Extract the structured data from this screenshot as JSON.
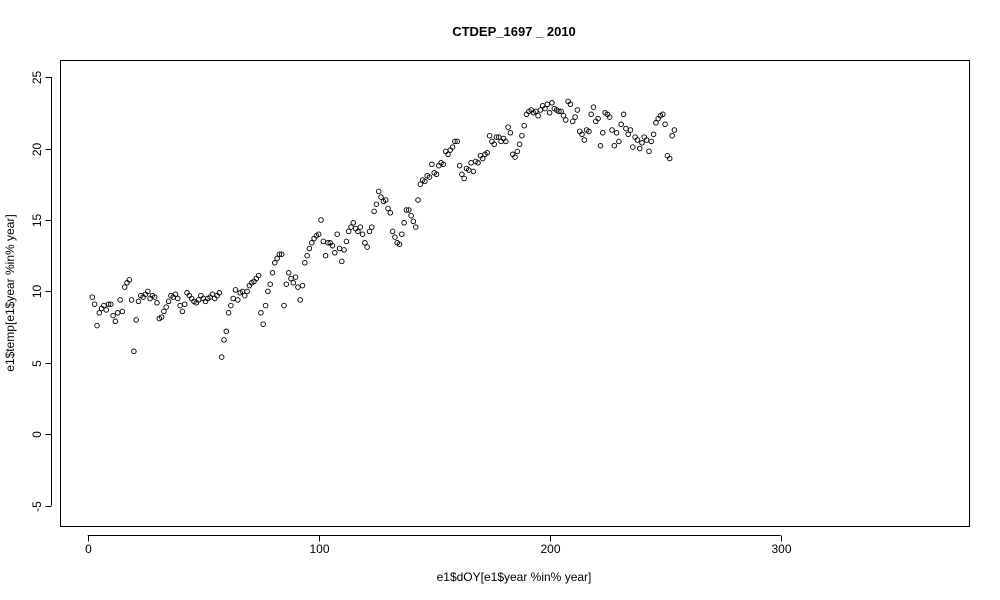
{
  "chart_data": {
    "type": "scatter",
    "title": "CTDEP_1697 _ 2010",
    "xlabel": "e1$dOY[e1$year %in% year]",
    "ylabel": "e1$temp[e1$year %in% year]",
    "xlim": [
      -12,
      382
    ],
    "ylim": [
      -6.5,
      26.2
    ],
    "x_ticks": [
      0,
      100,
      200,
      300
    ],
    "y_ticks": [
      -5,
      0,
      5,
      10,
      15,
      20,
      25
    ],
    "x_tick_labels": [
      "0",
      "100",
      "200",
      "300"
    ],
    "y_tick_labels": [
      "-5",
      "0",
      "5",
      "10",
      "15",
      "20",
      "25"
    ],
    "grid": false,
    "marker": "open-circle",
    "points": [
      [
        2,
        9.6
      ],
      [
        3,
        9.1
      ],
      [
        4,
        7.6
      ],
      [
        5,
        8.5
      ],
      [
        6,
        8.8
      ],
      [
        7,
        9.0
      ],
      [
        8,
        8.7
      ],
      [
        9,
        9.1
      ],
      [
        10,
        9.1
      ],
      [
        11,
        8.3
      ],
      [
        12,
        7.9
      ],
      [
        13,
        8.5
      ],
      [
        14,
        9.4
      ],
      [
        15,
        8.6
      ],
      [
        16,
        10.3
      ],
      [
        17,
        10.6
      ],
      [
        18,
        10.8
      ],
      [
        19,
        9.4
      ],
      [
        20,
        5.8
      ],
      [
        21,
        8.0
      ],
      [
        22,
        9.3
      ],
      [
        23,
        9.7
      ],
      [
        24,
        9.6
      ],
      [
        25,
        9.8
      ],
      [
        26,
        10.0
      ],
      [
        27,
        9.5
      ],
      [
        28,
        9.7
      ],
      [
        29,
        9.6
      ],
      [
        30,
        9.2
      ],
      [
        31,
        8.1
      ],
      [
        32,
        8.2
      ],
      [
        33,
        8.6
      ],
      [
        34,
        8.9
      ],
      [
        35,
        9.3
      ],
      [
        36,
        9.7
      ],
      [
        37,
        9.6
      ],
      [
        38,
        9.8
      ],
      [
        39,
        9.5
      ],
      [
        40,
        9.0
      ],
      [
        41,
        8.6
      ],
      [
        42,
        9.1
      ],
      [
        43,
        9.9
      ],
      [
        44,
        9.7
      ],
      [
        45,
        9.5
      ],
      [
        46,
        9.3
      ],
      [
        47,
        9.2
      ],
      [
        48,
        9.4
      ],
      [
        49,
        9.7
      ],
      [
        50,
        9.5
      ],
      [
        51,
        9.3
      ],
      [
        52,
        9.5
      ],
      [
        53,
        9.6
      ],
      [
        54,
        9.8
      ],
      [
        55,
        9.5
      ],
      [
        56,
        9.7
      ],
      [
        57,
        9.9
      ],
      [
        58,
        5.4
      ],
      [
        59,
        6.6
      ],
      [
        60,
        7.2
      ],
      [
        61,
        8.5
      ],
      [
        62,
        9.0
      ],
      [
        63,
        9.5
      ],
      [
        64,
        10.1
      ],
      [
        65,
        9.4
      ],
      [
        66,
        9.9
      ],
      [
        67,
        10.0
      ],
      [
        68,
        9.7
      ],
      [
        69,
        10.0
      ],
      [
        70,
        10.4
      ],
      [
        71,
        10.6
      ],
      [
        72,
        10.7
      ],
      [
        73,
        10.9
      ],
      [
        74,
        11.1
      ],
      [
        75,
        8.5
      ],
      [
        76,
        7.7
      ],
      [
        77,
        9.0
      ],
      [
        78,
        10.0
      ],
      [
        79,
        10.5
      ],
      [
        80,
        11.3
      ],
      [
        81,
        12.0
      ],
      [
        82,
        12.3
      ],
      [
        83,
        12.6
      ],
      [
        84,
        12.6
      ],
      [
        85,
        9.0
      ],
      [
        86,
        10.5
      ],
      [
        87,
        11.3
      ],
      [
        88,
        10.9
      ],
      [
        89,
        10.6
      ],
      [
        90,
        11.0
      ],
      [
        91,
        10.3
      ],
      [
        92,
        9.4
      ],
      [
        93,
        10.4
      ],
      [
        94,
        12.0
      ],
      [
        95,
        12.5
      ],
      [
        96,
        13.0
      ],
      [
        97,
        13.4
      ],
      [
        98,
        13.7
      ],
      [
        99,
        13.9
      ],
      [
        100,
        14.0
      ],
      [
        101,
        15.0
      ],
      [
        102,
        13.5
      ],
      [
        103,
        12.5
      ],
      [
        104,
        13.4
      ],
      [
        105,
        13.4
      ],
      [
        106,
        13.2
      ],
      [
        107,
        12.7
      ],
      [
        108,
        14.0
      ],
      [
        109,
        13.0
      ],
      [
        110,
        12.1
      ],
      [
        111,
        12.9
      ],
      [
        112,
        13.5
      ],
      [
        113,
        14.2
      ],
      [
        114,
        14.5
      ],
      [
        115,
        14.8
      ],
      [
        116,
        14.4
      ],
      [
        117,
        14.2
      ],
      [
        118,
        14.5
      ],
      [
        119,
        14.0
      ],
      [
        120,
        13.4
      ],
      [
        121,
        13.1
      ],
      [
        122,
        14.2
      ],
      [
        123,
        14.5
      ],
      [
        124,
        15.6
      ],
      [
        125,
        16.1
      ],
      [
        126,
        17.0
      ],
      [
        127,
        16.6
      ],
      [
        128,
        16.3
      ],
      [
        129,
        16.4
      ],
      [
        130,
        15.8
      ],
      [
        131,
        15.5
      ],
      [
        132,
        14.2
      ],
      [
        133,
        13.8
      ],
      [
        134,
        13.4
      ],
      [
        135,
        13.3
      ],
      [
        136,
        14.0
      ],
      [
        137,
        14.8
      ],
      [
        138,
        15.7
      ],
      [
        139,
        15.7
      ],
      [
        140,
        15.3
      ],
      [
        141,
        14.9
      ],
      [
        142,
        14.5
      ],
      [
        143,
        16.4
      ],
      [
        144,
        17.5
      ],
      [
        145,
        17.8
      ],
      [
        146,
        17.7
      ],
      [
        147,
        18.1
      ],
      [
        148,
        18.0
      ],
      [
        149,
        18.9
      ],
      [
        150,
        18.3
      ],
      [
        151,
        18.2
      ],
      [
        152,
        18.8
      ],
      [
        153,
        19.0
      ],
      [
        154,
        18.9
      ],
      [
        155,
        19.8
      ],
      [
        156,
        19.6
      ],
      [
        157,
        19.9
      ],
      [
        158,
        20.1
      ],
      [
        159,
        20.5
      ],
      [
        160,
        20.5
      ],
      [
        161,
        18.8
      ],
      [
        162,
        18.2
      ],
      [
        163,
        17.9
      ],
      [
        164,
        18.6
      ],
      [
        165,
        18.5
      ],
      [
        166,
        19.0
      ],
      [
        167,
        18.4
      ],
      [
        168,
        19.1
      ],
      [
        169,
        19.0
      ],
      [
        170,
        19.5
      ],
      [
        171,
        19.3
      ],
      [
        172,
        19.6
      ],
      [
        173,
        19.7
      ],
      [
        174,
        20.9
      ],
      [
        175,
        20.5
      ],
      [
        176,
        20.3
      ],
      [
        177,
        20.8
      ],
      [
        178,
        20.8
      ],
      [
        179,
        20.5
      ],
      [
        180,
        20.7
      ],
      [
        181,
        20.5
      ],
      [
        182,
        21.5
      ],
      [
        183,
        21.1
      ],
      [
        184,
        19.6
      ],
      [
        185,
        19.4
      ],
      [
        186,
        19.8
      ],
      [
        187,
        20.3
      ],
      [
        188,
        20.9
      ],
      [
        189,
        21.6
      ],
      [
        190,
        22.4
      ],
      [
        191,
        22.6
      ],
      [
        192,
        22.7
      ],
      [
        193,
        22.5
      ],
      [
        194,
        22.6
      ],
      [
        195,
        22.3
      ],
      [
        196,
        22.7
      ],
      [
        197,
        23.0
      ],
      [
        198,
        22.8
      ],
      [
        199,
        23.1
      ],
      [
        200,
        22.5
      ],
      [
        201,
        23.2
      ],
      [
        202,
        22.8
      ],
      [
        203,
        22.7
      ],
      [
        204,
        22.6
      ],
      [
        205,
        22.6
      ],
      [
        206,
        22.3
      ],
      [
        207,
        22.0
      ],
      [
        208,
        23.3
      ],
      [
        209,
        23.1
      ],
      [
        210,
        21.9
      ],
      [
        211,
        22.2
      ],
      [
        212,
        22.7
      ],
      [
        213,
        21.2
      ],
      [
        214,
        21.0
      ],
      [
        215,
        20.6
      ],
      [
        216,
        21.3
      ],
      [
        217,
        21.2
      ],
      [
        218,
        22.4
      ],
      [
        219,
        22.9
      ],
      [
        220,
        21.9
      ],
      [
        221,
        22.1
      ],
      [
        222,
        20.2
      ],
      [
        223,
        21.1
      ],
      [
        224,
        22.5
      ],
      [
        225,
        22.4
      ],
      [
        226,
        22.2
      ],
      [
        227,
        21.3
      ],
      [
        228,
        20.2
      ],
      [
        229,
        21.1
      ],
      [
        230,
        20.5
      ],
      [
        231,
        21.7
      ],
      [
        232,
        22.4
      ],
      [
        233,
        21.4
      ],
      [
        234,
        21.0
      ],
      [
        235,
        21.3
      ],
      [
        236,
        20.1
      ],
      [
        237,
        20.8
      ],
      [
        238,
        20.6
      ],
      [
        239,
        20.0
      ],
      [
        240,
        20.4
      ],
      [
        241,
        20.8
      ],
      [
        242,
        20.6
      ],
      [
        243,
        19.8
      ],
      [
        244,
        20.5
      ],
      [
        245,
        21.0
      ],
      [
        246,
        21.8
      ],
      [
        247,
        22.1
      ],
      [
        248,
        22.3
      ],
      [
        249,
        22.4
      ],
      [
        250,
        21.7
      ],
      [
        251,
        19.5
      ],
      [
        252,
        19.3
      ],
      [
        253,
        20.9
      ],
      [
        254,
        21.3
      ]
    ]
  }
}
